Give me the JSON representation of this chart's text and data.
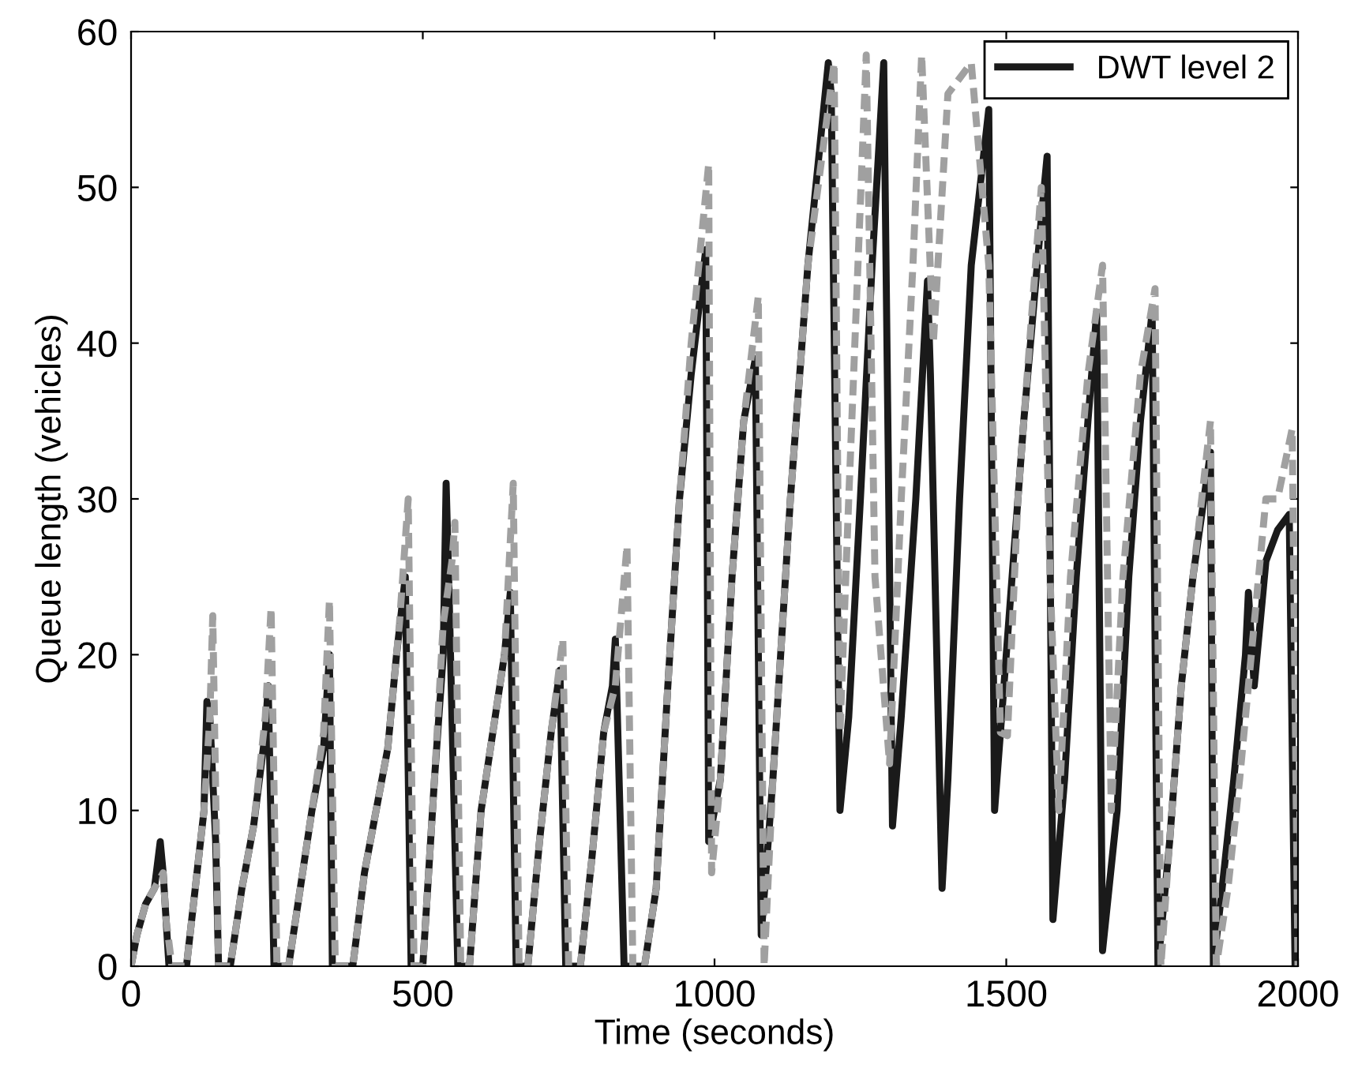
{
  "chart_data": {
    "type": "line",
    "xlabel": "Time (seconds)",
    "ylabel": "Queue length (vehicles)",
    "xlim": [
      0,
      2000
    ],
    "ylim": [
      0,
      60
    ],
    "xticks": [
      0,
      500,
      1000,
      1500,
      2000
    ],
    "yticks": [
      0,
      10,
      20,
      30,
      40,
      50,
      60
    ],
    "grid": false,
    "legend": "top right",
    "series": [
      {
        "name": "DWT level 2",
        "color": "#1a1a1a",
        "line_style": "solid",
        "x": [
          0,
          10,
          25,
          40,
          50,
          55,
          65,
          95,
          110,
          125,
          130,
          135,
          145,
          150,
          170,
          190,
          210,
          230,
          235,
          245,
          270,
          290,
          310,
          330,
          340,
          345,
          380,
          400,
          420,
          440,
          455,
          470,
          480,
          500,
          520,
          535,
          540,
          545,
          560,
          580,
          600,
          620,
          640,
          650,
          660,
          680,
          700,
          720,
          735,
          745,
          770,
          790,
          810,
          825,
          830,
          845,
          880,
          900,
          920,
          940,
          960,
          985,
          990,
          1010,
          1030,
          1050,
          1070,
          1080,
          1100,
          1130,
          1160,
          1195,
          1200,
          1215,
          1230,
          1250,
          1270,
          1290,
          1305,
          1320,
          1345,
          1365,
          1370,
          1390,
          1400,
          1420,
          1440,
          1470,
          1480,
          1500,
          1530,
          1560,
          1570,
          1580,
          1600,
          1620,
          1640,
          1655,
          1665,
          1690,
          1710,
          1730,
          1750,
          1760,
          1780,
          1800,
          1820,
          1850,
          1855,
          1870,
          1890,
          1910,
          1915,
          1925,
          1945,
          1965,
          1985,
          1995,
          2000
        ],
        "values": [
          0,
          2,
          4,
          5,
          8,
          6,
          0,
          0,
          5,
          10,
          17,
          16,
          8,
          0,
          0,
          5,
          9,
          15,
          18,
          0,
          0,
          5,
          10,
          14,
          20,
          0,
          0,
          6,
          10,
          14,
          20,
          25,
          0,
          0,
          12,
          20,
          31,
          24,
          0,
          0,
          10,
          15,
          20,
          24,
          0,
          0,
          8,
          15,
          19,
          0,
          0,
          7,
          15,
          18,
          21,
          0,
          0,
          5,
          18,
          30,
          38,
          46,
          8,
          12,
          25,
          35,
          39,
          2,
          12,
          30,
          45,
          58,
          56,
          10,
          16,
          30,
          45,
          58,
          9,
          16,
          30,
          44,
          38,
          5,
          12,
          30,
          45,
          55,
          10,
          20,
          35,
          48,
          52,
          3,
          12,
          25,
          35,
          42,
          1,
          10,
          25,
          35,
          42,
          0,
          8,
          18,
          25,
          33,
          0,
          5,
          12,
          20,
          24,
          18,
          26,
          28,
          29,
          0,
          7
        ]
      },
      {
        "color": "#a0a0a0",
        "line_style": "dashed",
        "x": [
          0,
          10,
          25,
          40,
          55,
          60,
          70,
          95,
          110,
          125,
          135,
          140,
          150,
          170,
          190,
          210,
          230,
          240,
          250,
          270,
          290,
          310,
          330,
          340,
          350,
          380,
          400,
          420,
          440,
          460,
          475,
          485,
          500,
          520,
          535,
          550,
          555,
          565,
          580,
          600,
          620,
          640,
          655,
          665,
          680,
          700,
          720,
          740,
          750,
          770,
          790,
          810,
          830,
          850,
          860,
          880,
          900,
          920,
          940,
          960,
          990,
          995,
          1010,
          1030,
          1050,
          1075,
          1085,
          1100,
          1130,
          1160,
          1205,
          1215,
          1230,
          1260,
          1275,
          1300,
          1320,
          1340,
          1355,
          1375,
          1400,
          1440,
          1470,
          1490,
          1502,
          1520,
          1560,
          1575,
          1590,
          1610,
          1640,
          1665,
          1680,
          1700,
          1730,
          1755,
          1765,
          1780,
          1800,
          1820,
          1850,
          1860,
          1880,
          1900,
          1920,
          1945,
          1965,
          1990,
          2000
        ],
        "values": [
          0,
          2,
          4,
          5,
          6,
          3,
          0,
          0,
          5,
          10,
          16,
          22.5,
          0,
          0,
          5,
          9,
          16,
          23,
          0,
          0,
          5,
          10,
          15,
          23.5,
          0,
          0,
          6,
          10,
          14,
          22,
          30,
          0,
          0,
          12,
          22,
          26,
          28.5,
          0,
          0,
          10,
          15,
          20,
          31,
          0,
          0,
          8,
          15,
          21,
          0,
          0,
          7,
          15,
          18,
          27,
          0,
          0,
          5,
          18,
          30,
          40,
          51.5,
          6,
          12,
          25,
          35,
          43,
          0,
          12,
          30,
          45,
          58,
          15,
          30,
          58.5,
          25,
          13,
          30,
          45,
          58.5,
          40,
          56,
          58,
          45,
          15,
          14.8,
          30,
          50,
          25,
          10,
          25,
          38,
          45,
          10,
          25,
          38,
          43.5,
          0,
          8,
          18,
          25,
          35,
          0,
          5,
          12,
          20,
          30,
          30,
          34.5,
          0
        ]
      }
    ]
  }
}
